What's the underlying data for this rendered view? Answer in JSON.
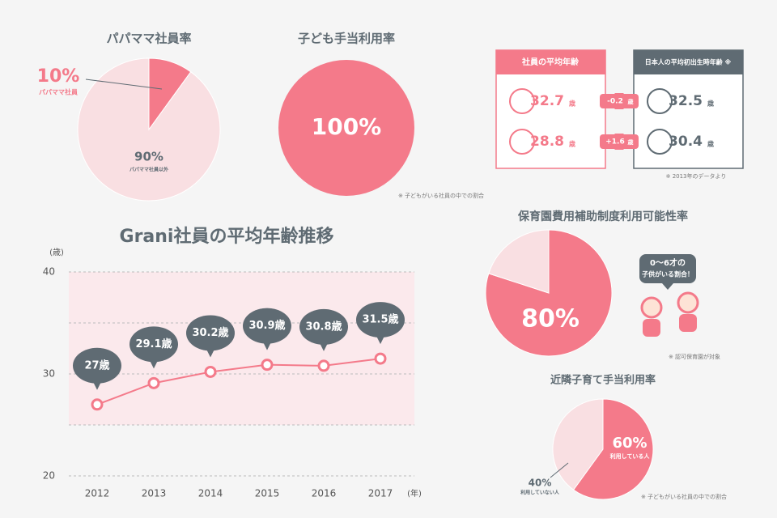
{
  "chart_data": [
    {
      "type": "pie",
      "title": "パパママ社員率",
      "categories": [
        "パパママ社員",
        "パパママ社員以外"
      ],
      "values": [
        10,
        90
      ],
      "value_labels": [
        "10%",
        "90%"
      ],
      "colors": [
        "#f47a8a",
        "#f9dfe2"
      ]
    },
    {
      "type": "pie",
      "title": "子ども手当利用率",
      "values": [
        100
      ],
      "value_labels": [
        "100%"
      ],
      "colors": [
        "#f47a8a"
      ],
      "note": "※ 子どもがいる社員の中での割合"
    },
    {
      "type": "line",
      "title": "Grani社員の平均年齢推移",
      "categories": [
        "2012",
        "2013",
        "2014",
        "2015",
        "2016",
        "2017"
      ],
      "values": [
        27,
        29.1,
        30.2,
        30.9,
        30.8,
        31.5
      ],
      "value_labels": [
        "27歳",
        "29.1歳",
        "30.2歳",
        "30.9歳",
        "30.8歳",
        "31.5歳"
      ],
      "color": "#f47a8a",
      "ylim": [
        20,
        40
      ],
      "yticks": [
        20,
        30,
        40
      ],
      "minor_yticks": [
        25,
        35
      ],
      "y_unit": "(歳)",
      "x_unit": "(年)",
      "grid": true
    },
    {
      "type": "pie",
      "title": "保育園費用補助制度利用可能性率",
      "values": [
        80,
        20
      ],
      "value_labels": [
        "80%",
        null
      ],
      "colors": [
        "#f47a8a",
        "#f9dfe2"
      ],
      "callout": [
        "0〜6才の",
        "子供がいる割合！"
      ],
      "note": "※ 認可保育園が対象"
    },
    {
      "type": "pie",
      "title": "近隣子育て手当利用率",
      "categories": [
        "利用している人",
        "利用していない人"
      ],
      "values": [
        60,
        40
      ],
      "value_labels": [
        "60%",
        "40%"
      ],
      "colors": [
        "#f47a8a",
        "#f9dfe2"
      ],
      "note": "※ 子どもがいる社員の中での割合"
    }
  ],
  "age_comparison": {
    "left_title": "社員の平均年齢",
    "right_title": "日本人の平均初出生時年齢 ※",
    "unit": "歳",
    "rows": [
      {
        "left": "32.7",
        "diff": "-0.2",
        "right": "32.5"
      },
      {
        "left": "28.8",
        "diff": "+1.6",
        "right": "30.4"
      }
    ],
    "note": "※ 2013年のデータより"
  }
}
